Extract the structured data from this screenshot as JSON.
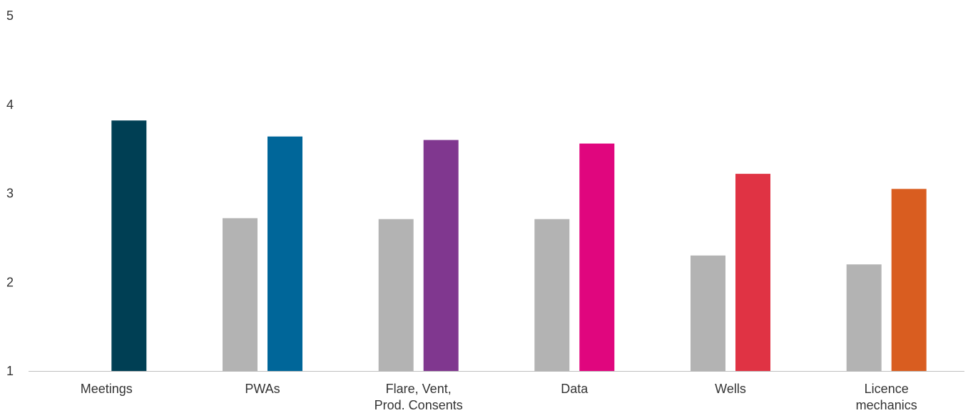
{
  "chart_data": {
    "type": "bar",
    "categories": [
      [
        "Meetings"
      ],
      [
        "PWAs"
      ],
      [
        "Flare, Vent,",
        "Prod. Consents"
      ],
      [
        "Data"
      ],
      [
        "Wells"
      ],
      [
        "Licence",
        "mechanics"
      ]
    ],
    "series": [
      {
        "values": [
          null,
          2.72,
          2.71,
          2.71,
          2.3,
          2.2
        ],
        "color": "#b3b3b3"
      },
      {
        "values": [
          3.82,
          3.64,
          3.6,
          3.56,
          3.22,
          3.05
        ],
        "colors": [
          "#003f54",
          "#006699",
          "#80378f",
          "#e0067e",
          "#e03344",
          "#d95d20"
        ]
      }
    ],
    "yticks": [
      "1",
      "2",
      "3",
      "4",
      "5"
    ],
    "ylim": [
      1,
      5
    ],
    "grid": false,
    "legend": "none"
  }
}
